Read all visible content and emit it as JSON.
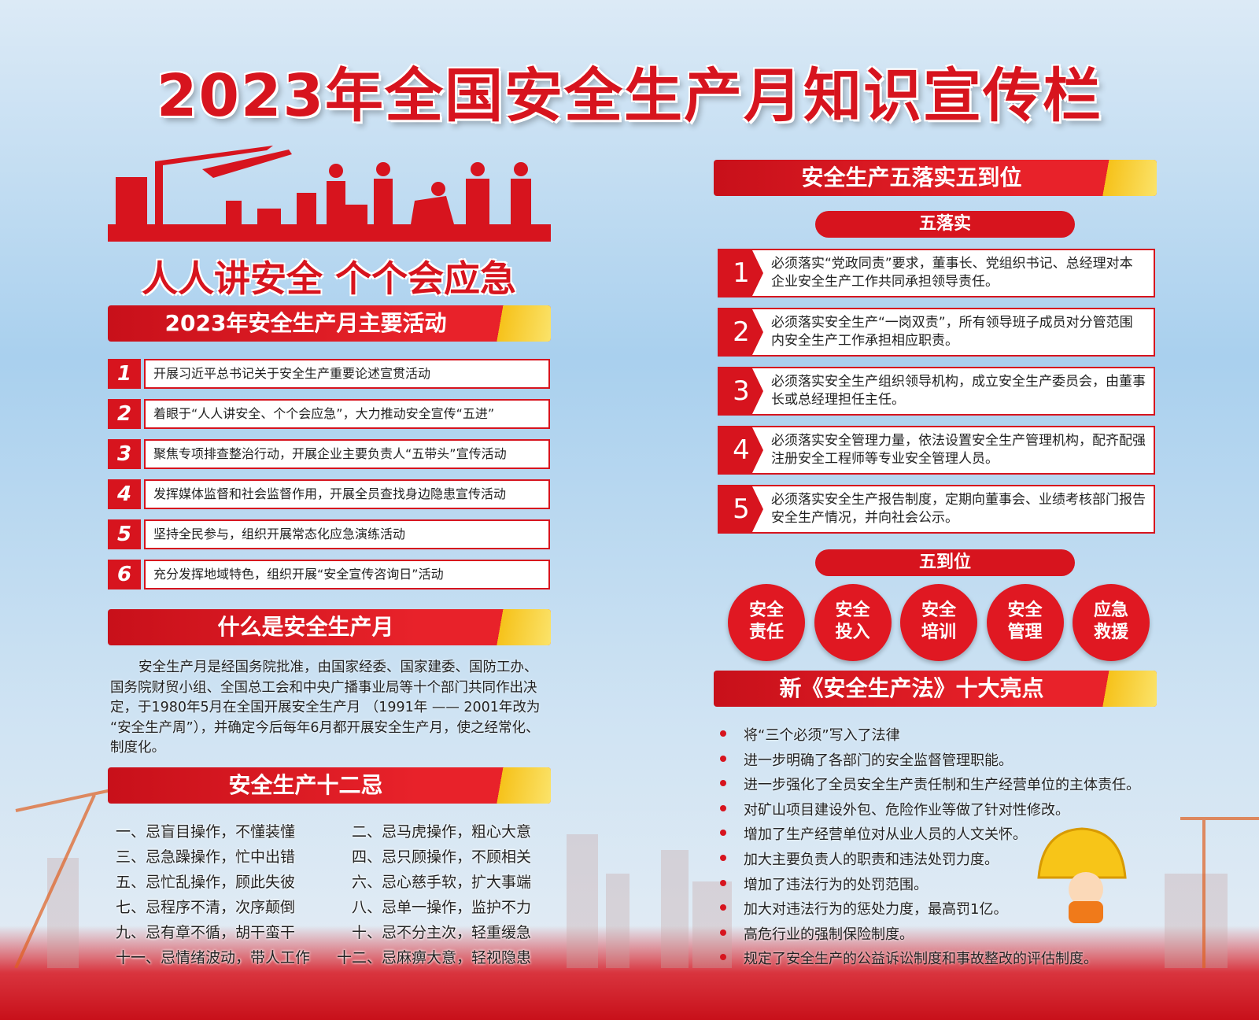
{
  "title": "2023年全国安全生产月知识宣传栏",
  "slogan": "人人讲安全  个个会应急",
  "colors": {
    "primary_red": "#d7141e",
    "accent_yellow": "#f6c21a"
  },
  "activities": {
    "header": "2023年安全生产月主要活动",
    "items": [
      {
        "num": "1",
        "text": "开展习近平总书记关于安全生产重要论述宣贯活动"
      },
      {
        "num": "2",
        "text": "着眼于“人人讲安全、个个会应急”，大力推动安全宣传“五进”"
      },
      {
        "num": "3",
        "text": "聚焦专项排查整治行动，开展企业主要负责人“五带头”宣传活动"
      },
      {
        "num": "4",
        "text": "发挥媒体监督和社会监督作用，开展全员查找身边隐患宣传活动"
      },
      {
        "num": "5",
        "text": "坚持全民参与，组织开展常态化应急演练活动"
      },
      {
        "num": "6",
        "text": "充分发挥地域特色，组织开展“安全宣传咨询日”活动"
      }
    ]
  },
  "what": {
    "header": "什么是安全生产月",
    "text": "安全生产月是经国务院批准，由国家经委、国家建委、国防工办、国务院财贸小组、全国总工会和中央广播事业局等十个部门共同作出决定，于1980年5月在全国开展安全生产月 （1991年 —— 2001年改为 “安全生产周”），并确定今后每年6月都开展安全生产月，使之经常化、制度化。"
  },
  "taboos": {
    "header": "安全生产十二忌",
    "items": [
      "一、忌盲目操作，不懂装懂",
      "二、忌马虎操作，粗心大意",
      "三、忌急躁操作，忙中出错",
      "四、忌只顾操作，不顾相关",
      "五、忌忙乱操作，顾此失彼",
      "六、忌心慈手软，扩大事端",
      "七、忌程序不清，次序颠倒",
      "八、忌单一操作，监护不力",
      "九、忌有章不循，胡干蛮干",
      "十、忌不分主次，轻重缓急",
      "十一、忌情绪波动，带人工作",
      "十二、忌麻痹大意，轻视隐患"
    ]
  },
  "five": {
    "header": "安全生产五落实五到位",
    "luoshi_label": "五落实",
    "luoshi": [
      {
        "num": "1",
        "text": "必须落实“党政同责”要求，董事长、党组织书记、总经理对本企业安全生产工作共同承担领导责任。"
      },
      {
        "num": "2",
        "text": "必须落实安全生产“一岗双责”，所有领导班子成员对分管范围内安全生产工作承担相应职责。"
      },
      {
        "num": "3",
        "text": "必须落实安全生产组织领导机构，成立安全生产委员会，由董事长或总经理担任主任。"
      },
      {
        "num": "4",
        "text": "必须落实安全管理力量，依法设置安全生产管理机构，配齐配强注册安全工程师等专业安全管理人员。"
      },
      {
        "num": "5",
        "text": "必须落实安全生产报告制度，定期向董事会、业绩考核部门报告安全生产情况，并向社会公示。"
      }
    ],
    "daowei_label": "五到位",
    "daowei": [
      [
        "安全",
        "责任"
      ],
      [
        "安全",
        "投入"
      ],
      [
        "安全",
        "培训"
      ],
      [
        "安全",
        "管理"
      ],
      [
        "应急",
        "救援"
      ]
    ]
  },
  "law": {
    "header": "新《安全生产法》十大亮点",
    "items": [
      "将“三个必须”写入了法律",
      "进一步明确了各部门的安全监督管理职能。",
      "进一步强化了全员安全生产责任制和生产经营单位的主体责任。",
      "对矿山项目建设外包、危险作业等做了针对性修改。",
      "增加了生产经营单位对从业人员的人文关怀。",
      "加大主要负责人的职责和违法处罚力度。",
      "增加了违法行为的处罚范围。",
      "加大对违法行为的惩处力度，最高罚1亿。",
      "高危行业的强制保险制度。",
      "规定了安全生产的公益诉讼制度和事故整改的评估制度。"
    ]
  }
}
